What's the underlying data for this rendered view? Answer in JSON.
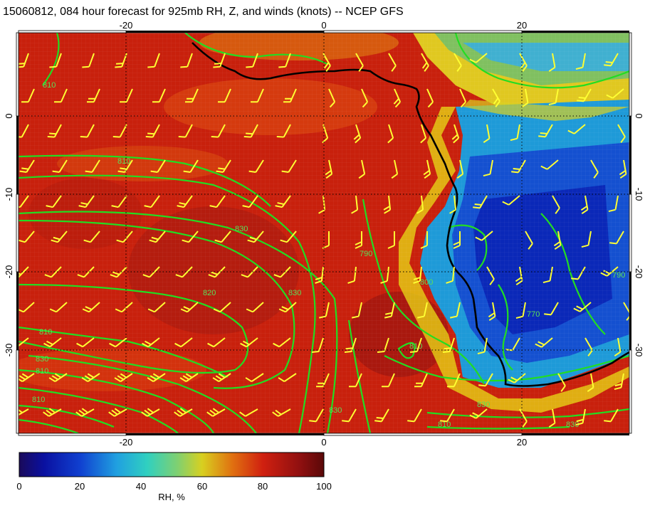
{
  "title": "15060812, 084 hour forecast for 925mb RH, Z, and winds (knots) -- NCEP GFS",
  "map": {
    "lon_range": [
      -31,
      31
    ],
    "lat_range": [
      -40,
      10
    ],
    "x_ticks": [
      "-20",
      "0",
      "20"
    ],
    "y_ticks": [
      "0",
      "-10",
      "-20",
      "-30"
    ],
    "contour_labels": [
      "810",
      "810",
      "830",
      "830",
      "820",
      "810",
      "830",
      "810",
      "810",
      "790",
      "800",
      "810",
      "830",
      "830",
      "810",
      "770",
      "790",
      "830"
    ],
    "field_colors": {
      "moist": "#c81e0a",
      "very_moist": "#7a0a0a",
      "dry": "#0a30c8",
      "medium": "#1e9ad8",
      "transition": "#e6d214",
      "contour": "#22dd22",
      "coast": "#000000",
      "barb": "#ffff33"
    }
  },
  "colorbar": {
    "ticks": [
      "0",
      "20",
      "40",
      "60",
      "80",
      "100"
    ],
    "label": "RH, %"
  }
}
